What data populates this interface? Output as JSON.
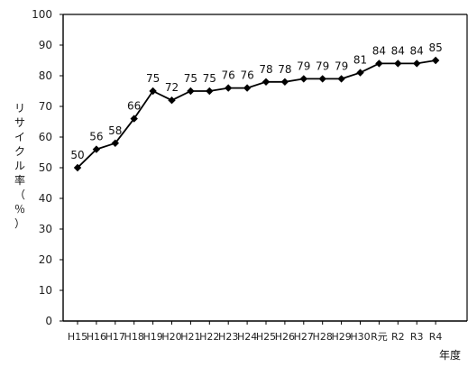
{
  "chart_data": {
    "type": "line",
    "title": "",
    "xlabel": "年度",
    "ylabel": "リサイクル率（％）",
    "categories": [
      "H15",
      "H16",
      "H17",
      "H18",
      "H19",
      "H20",
      "H21",
      "H22",
      "H23",
      "H24",
      "H25",
      "H26",
      "H27",
      "H28",
      "H29",
      "H30",
      "R元",
      "R2",
      "R3",
      "R4"
    ],
    "series": [
      {
        "values": [
          50,
          56,
          58,
          66,
          75,
          72,
          75,
          75,
          76,
          76,
          78,
          78,
          79,
          79,
          79,
          81,
          84,
          84,
          84,
          85
        ]
      }
    ],
    "ylim": [
      0,
      100
    ],
    "yticks": [
      0,
      10,
      20,
      30,
      40,
      50,
      60,
      70,
      80,
      90,
      100
    ],
    "grid": false,
    "legend": "none",
    "colors": {
      "line": "#000000",
      "marker": "#000000",
      "axis": "#000000",
      "text": "#222222"
    }
  }
}
